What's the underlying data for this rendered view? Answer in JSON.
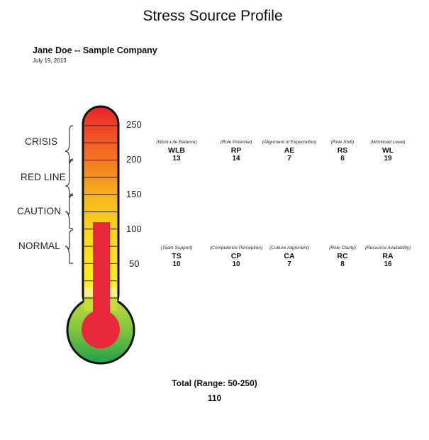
{
  "report": {
    "title": "Stress Source Profile",
    "person": "Jane Doe -- Sample Company",
    "date": "July 19, 2013"
  },
  "gauge": {
    "scale_min": 0,
    "scale_max": 250,
    "value": 110,
    "ticks": [
      "250",
      "200",
      "150",
      "100",
      "50"
    ],
    "zones": [
      "CRISIS",
      "RED LINE",
      "CAUTION",
      "NORMAL"
    ],
    "colors": {
      "top": "#e8232b",
      "mid": "#f5a623",
      "yellow": "#f9ee1d",
      "bottom": "#3cb44b",
      "mercury": "#e8293b"
    }
  },
  "metrics_row1": [
    {
      "desc": "(Work-Life Balance)",
      "abbr": "WLB",
      "score": "13"
    },
    {
      "desc": "(Role Potential)",
      "abbr": "RP",
      "score": "14"
    },
    {
      "desc": "(Alignment of Expectation)",
      "abbr": "AE",
      "score": "7"
    },
    {
      "desc": "(Role Shift)",
      "abbr": "RS",
      "score": "6"
    },
    {
      "desc": "(Workload Level)",
      "abbr": "WL",
      "score": "19"
    }
  ],
  "metrics_row2": [
    {
      "desc": "(Team Support)",
      "abbr": "TS",
      "score": "10"
    },
    {
      "desc": "(Competence Perception)",
      "abbr": "CP",
      "score": "10"
    },
    {
      "desc": "(Culture Alignment)",
      "abbr": "CA",
      "score": "7"
    },
    {
      "desc": "(Role Clarity)",
      "abbr": "RC",
      "score": "8"
    },
    {
      "desc": "(Resource Availability)",
      "abbr": "RA",
      "score": "16"
    }
  ],
  "total": {
    "label": "Total (Range: 50-250)",
    "value": "110"
  }
}
